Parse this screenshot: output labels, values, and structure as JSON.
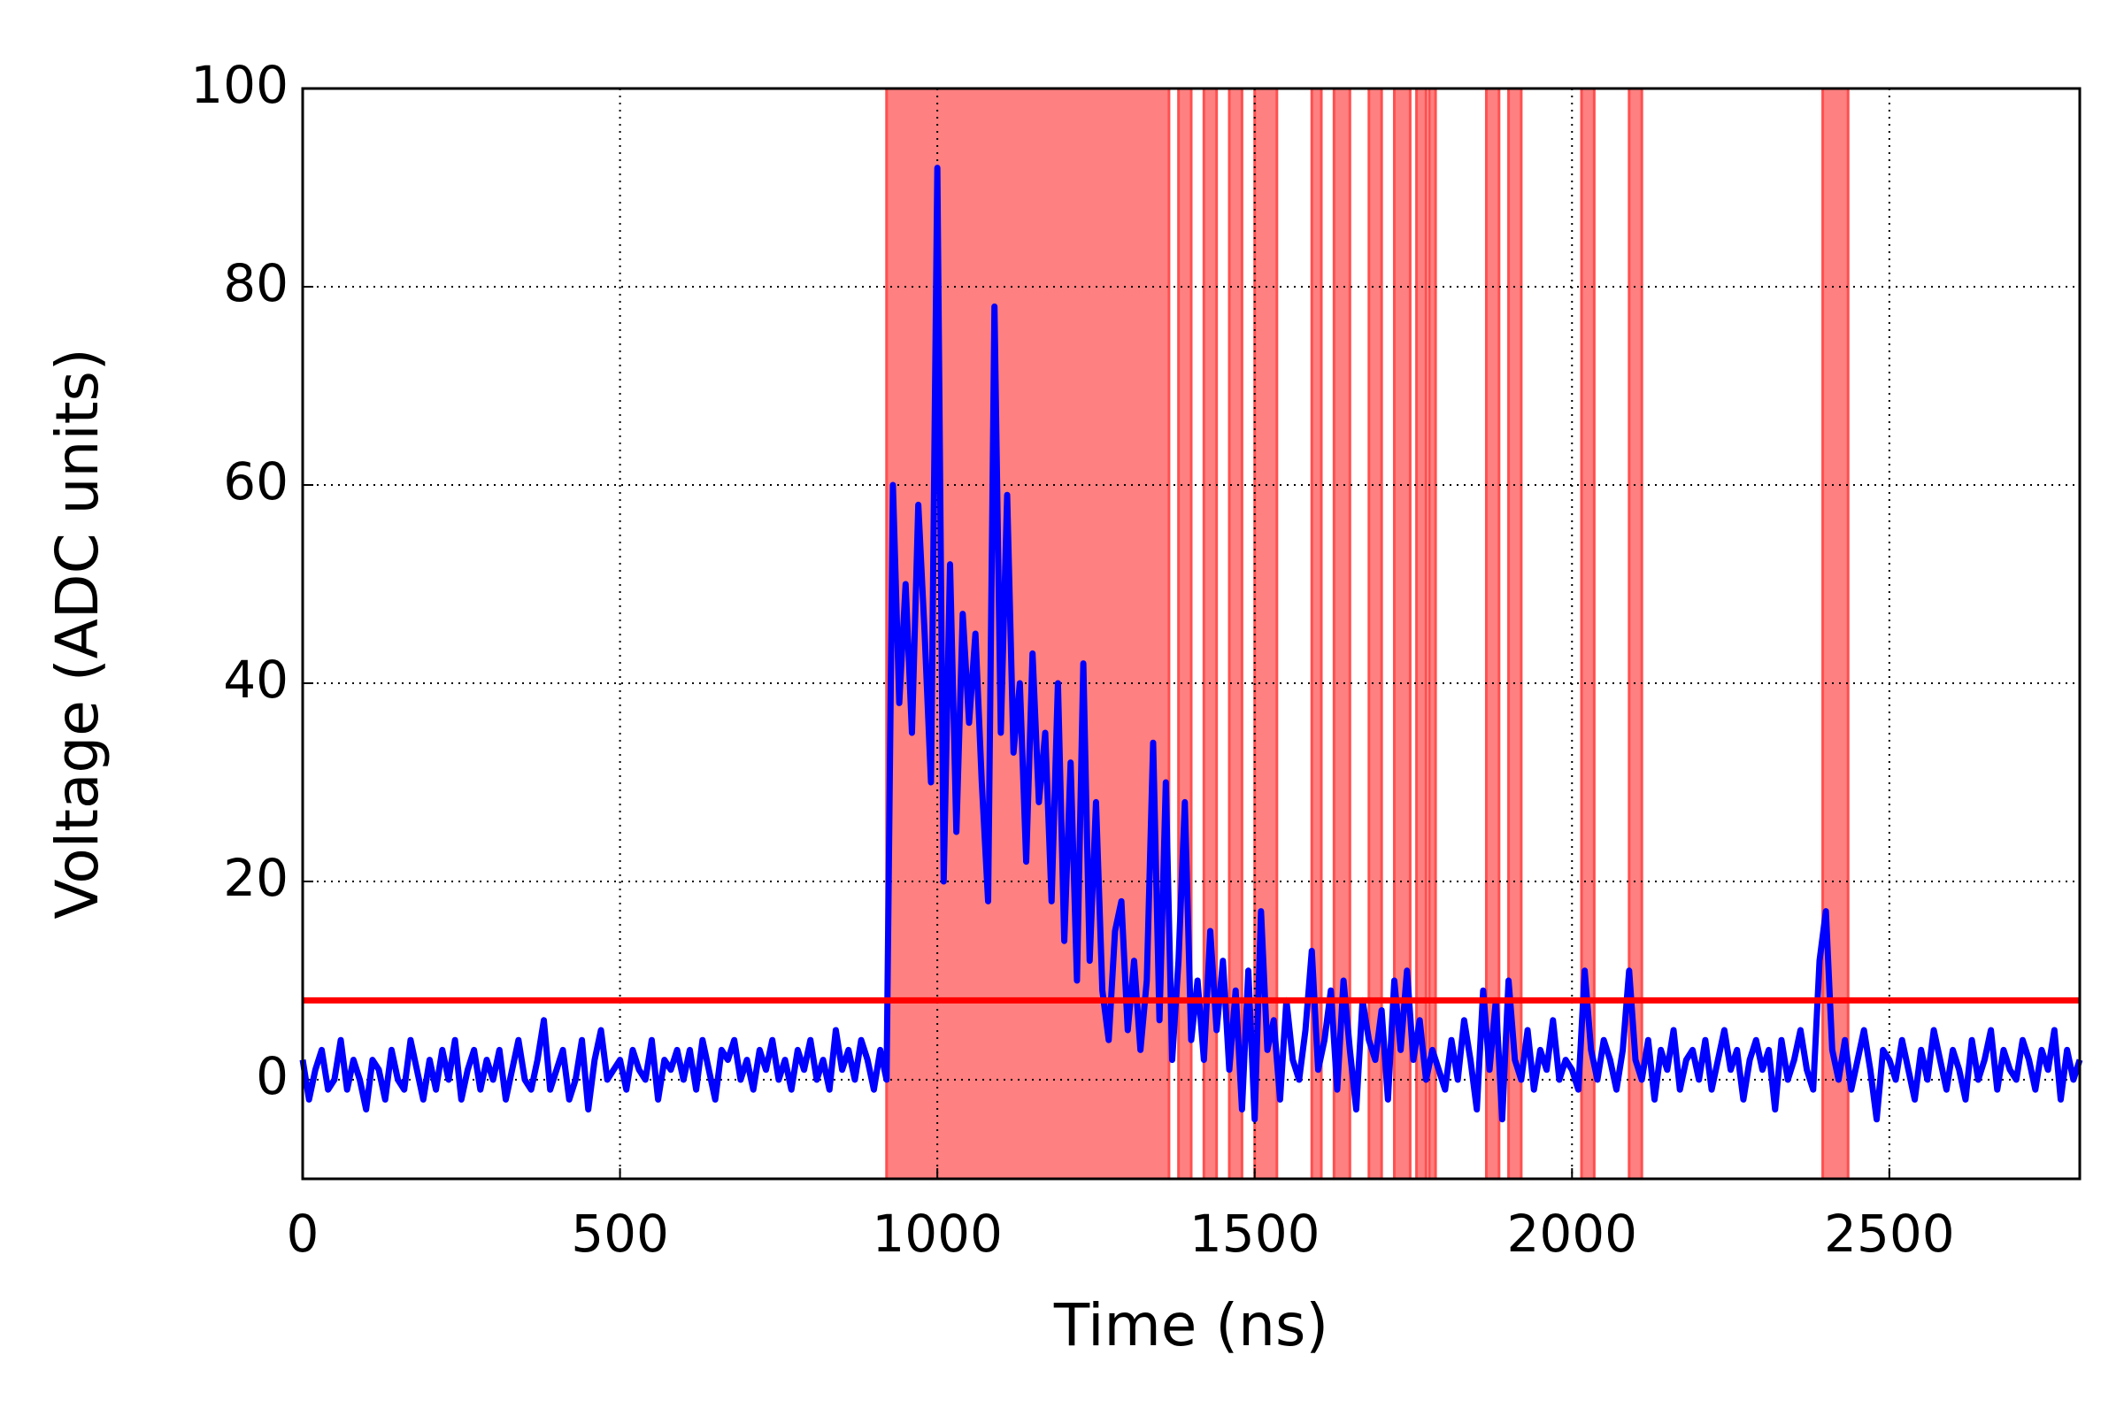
{
  "chart_data": {
    "type": "line",
    "xlabel": "Time (ns)",
    "ylabel": "Voltage (ADC units)",
    "x": [
      0,
      10,
      20,
      30,
      40,
      50,
      60,
      70,
      80,
      90,
      100,
      110,
      120,
      130,
      140,
      150,
      160,
      170,
      180,
      190,
      200,
      210,
      220,
      230,
      240,
      250,
      260,
      270,
      280,
      290,
      300,
      310,
      320,
      330,
      340,
      350,
      360,
      370,
      380,
      390,
      400,
      410,
      420,
      430,
      440,
      450,
      460,
      470,
      480,
      490,
      500,
      510,
      520,
      530,
      540,
      550,
      560,
      570,
      580,
      590,
      600,
      610,
      620,
      630,
      640,
      650,
      660,
      670,
      680,
      690,
      700,
      710,
      720,
      730,
      740,
      750,
      760,
      770,
      780,
      790,
      800,
      810,
      820,
      830,
      840,
      850,
      860,
      870,
      880,
      890,
      900,
      910,
      920,
      930,
      940,
      950,
      960,
      970,
      980,
      990,
      1000,
      1010,
      1020,
      1030,
      1040,
      1050,
      1060,
      1070,
      1080,
      1090,
      1100,
      1110,
      1120,
      1130,
      1140,
      1150,
      1160,
      1170,
      1180,
      1190,
      1200,
      1210,
      1220,
      1230,
      1240,
      1250,
      1260,
      1270,
      1280,
      1290,
      1300,
      1310,
      1320,
      1330,
      1340,
      1350,
      1360,
      1370,
      1380,
      1390,
      1400,
      1410,
      1420,
      1430,
      1440,
      1450,
      1460,
      1470,
      1480,
      1490,
      1500,
      1510,
      1520,
      1530,
      1540,
      1550,
      1560,
      1570,
      1580,
      1590,
      1600,
      1610,
      1620,
      1630,
      1640,
      1650,
      1660,
      1670,
      1680,
      1690,
      1700,
      1710,
      1720,
      1730,
      1740,
      1750,
      1760,
      1770,
      1780,
      1790,
      1800,
      1810,
      1820,
      1830,
      1840,
      1850,
      1860,
      1870,
      1880,
      1890,
      1900,
      1910,
      1920,
      1930,
      1940,
      1950,
      1960,
      1970,
      1980,
      1990,
      2000,
      2010,
      2020,
      2030,
      2040,
      2050,
      2060,
      2070,
      2080,
      2090,
      2100,
      2110,
      2120,
      2130,
      2140,
      2150,
      2160,
      2170,
      2180,
      2190,
      2200,
      2210,
      2220,
      2230,
      2240,
      2250,
      2260,
      2270,
      2280,
      2290,
      2300,
      2310,
      2320,
      2330,
      2340,
      2350,
      2360,
      2370,
      2380,
      2390,
      2400,
      2410,
      2420,
      2430,
      2440,
      2450,
      2460,
      2470,
      2480,
      2490,
      2500,
      2510,
      2520,
      2530,
      2540,
      2550,
      2560,
      2570,
      2580,
      2590,
      2600,
      2610,
      2620,
      2630,
      2640,
      2650,
      2660,
      2670,
      2680,
      2690,
      2700,
      2710,
      2720,
      2730,
      2740,
      2750,
      2760,
      2770,
      2780,
      2790,
      2800
    ],
    "values": [
      2,
      -2,
      1,
      3,
      -1,
      0,
      4,
      -1,
      2,
      0,
      -3,
      2,
      1,
      -2,
      3,
      0,
      -1,
      4,
      1,
      -2,
      2,
      -1,
      3,
      0,
      4,
      -2,
      1,
      3,
      -1,
      2,
      0,
      3,
      -2,
      1,
      4,
      0,
      -1,
      2,
      6,
      -1,
      1,
      3,
      -2,
      0,
      4,
      -3,
      2,
      5,
      0,
      1,
      2,
      -1,
      3,
      1,
      0,
      4,
      -2,
      2,
      1,
      3,
      0,
      3,
      -1,
      4,
      1,
      -2,
      3,
      2,
      4,
      0,
      2,
      -1,
      3,
      1,
      4,
      0,
      2,
      -1,
      3,
      1,
      4,
      0,
      2,
      -1,
      5,
      1,
      3,
      0,
      4,
      2,
      -1,
      3,
      0,
      60,
      38,
      50,
      35,
      58,
      45,
      30,
      92,
      20,
      52,
      25,
      47,
      36,
      45,
      30,
      18,
      78,
      35,
      59,
      33,
      40,
      22,
      43,
      28,
      35,
      18,
      40,
      14,
      32,
      10,
      42,
      12,
      28,
      9,
      4,
      15,
      18,
      5,
      12,
      3,
      10,
      34,
      6,
      30,
      2,
      12,
      28,
      4,
      10,
      2,
      15,
      5,
      12,
      1,
      9,
      -3,
      11,
      -4,
      17,
      3,
      6,
      -2,
      8,
      2,
      0,
      5,
      13,
      1,
      4,
      9,
      -1,
      10,
      3,
      -3,
      8,
      4,
      2,
      7,
      -2,
      10,
      3,
      11,
      2,
      6,
      0,
      3,
      1,
      -1,
      4,
      0,
      6,
      2,
      -3,
      9,
      1,
      8,
      -4,
      10,
      2,
      0,
      5,
      -1,
      3,
      1,
      6,
      0,
      2,
      1,
      -1,
      11,
      3,
      0,
      4,
      2,
      -1,
      3,
      11,
      2,
      0,
      4,
      -2,
      3,
      1,
      5,
      -1,
      2,
      3,
      0,
      4,
      -1,
      2,
      5,
      1,
      3,
      -2,
      2,
      4,
      1,
      3,
      -3,
      4,
      0,
      2,
      5,
      1,
      -1,
      12,
      17,
      3,
      0,
      4,
      -1,
      2,
      5,
      1,
      -4,
      3,
      2,
      0,
      4,
      1,
      -2,
      3,
      0,
      5,
      2,
      -1,
      3,
      1,
      -2,
      4,
      0,
      2,
      5,
      -1,
      3,
      1,
      0,
      4,
      2,
      -1,
      3,
      1,
      5,
      -2,
      3,
      0,
      2
    ],
    "color": "#0000ff",
    "threshold": 8,
    "threshold_color": "#ff0000",
    "spans": [
      [
        920,
        1365
      ],
      [
        1380,
        1400
      ],
      [
        1420,
        1440
      ],
      [
        1460,
        1480
      ],
      [
        1500,
        1535
      ],
      [
        1590,
        1605
      ],
      [
        1625,
        1650
      ],
      [
        1680,
        1700
      ],
      [
        1720,
        1745
      ],
      [
        1755,
        1770
      ],
      [
        1775,
        1785
      ],
      [
        1865,
        1885
      ],
      [
        1900,
        1920
      ],
      [
        2015,
        2035
      ],
      [
        2090,
        2110
      ],
      [
        2395,
        2435
      ]
    ],
    "span_color": "#ff8080",
    "xlim": [
      0,
      2800
    ],
    "xticks": [
      0,
      500,
      1000,
      1500,
      2000,
      2500
    ],
    "ylim": [
      -10,
      100
    ],
    "yticks": [
      0,
      20,
      40,
      60,
      80,
      100
    ],
    "grid": true
  }
}
